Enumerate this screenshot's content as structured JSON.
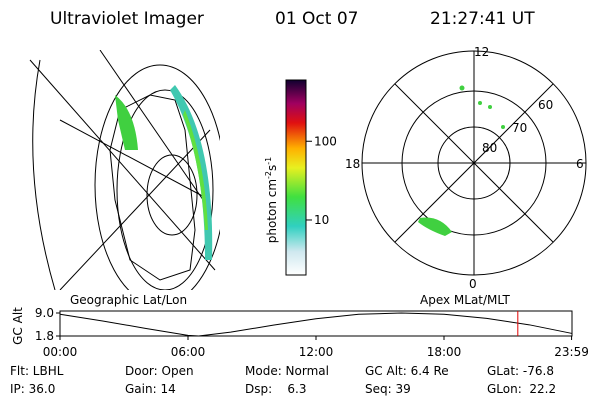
{
  "header": {
    "instrument": "Ultraviolet Imager",
    "date": "01 Oct 07",
    "time": "21:27:41 UT"
  },
  "colorbar": {
    "label": "photon cm",
    "exp1": "-2",
    "unit2": "s",
    "exp2": "-1",
    "scale": "log",
    "lim": [
      2,
      600
    ],
    "ticks": [
      10,
      100
    ]
  },
  "polar_plot": {
    "mlt_labels": [
      "12",
      "18",
      "6",
      "0"
    ],
    "lat_labels": [
      "80",
      "70",
      "60"
    ]
  },
  "altitude_plot": {
    "y_label": "GC Alt",
    "left_title": "Geographic Lat/Lon",
    "right_title": "Apex MLat/MLT",
    "xlim": [
      0,
      24
    ],
    "ylim": [
      1.8,
      9.0
    ],
    "xticks": [
      {
        "value": 0,
        "label": "00:00"
      },
      {
        "value": 6,
        "label": "06:00"
      },
      {
        "value": 12,
        "label": "12:00"
      },
      {
        "value": 18,
        "label": "18:00"
      },
      {
        "value": 23.98,
        "label": "23:59"
      }
    ],
    "yticks": [
      {
        "value": 9.0,
        "label": "9.0"
      },
      {
        "value": 1.8,
        "label": "1.8"
      }
    ],
    "x": [
      0,
      2,
      4,
      6,
      6.5,
      8,
      10,
      12,
      14,
      16,
      18,
      20,
      22,
      24
    ],
    "values": [
      8.6,
      6.5,
      4.2,
      2.0,
      1.8,
      3.0,
      5.2,
      7.2,
      8.6,
      9.0,
      8.6,
      7.3,
      5.3,
      2.6
    ],
    "marker_x": 21.46,
    "marker_color": "#e00000"
  },
  "info": {
    "rows": [
      [
        "Flt: LBHL",
        "Door: Open",
        "Mode: Normal",
        "GC Alt: 6.4 Re",
        "GLat: -76.8"
      ],
      [
        "IP: 36.0",
        "Gain: 14",
        "Dsp:    6.3",
        "Seq: 39",
        "GLon:  22.2"
      ]
    ]
  }
}
